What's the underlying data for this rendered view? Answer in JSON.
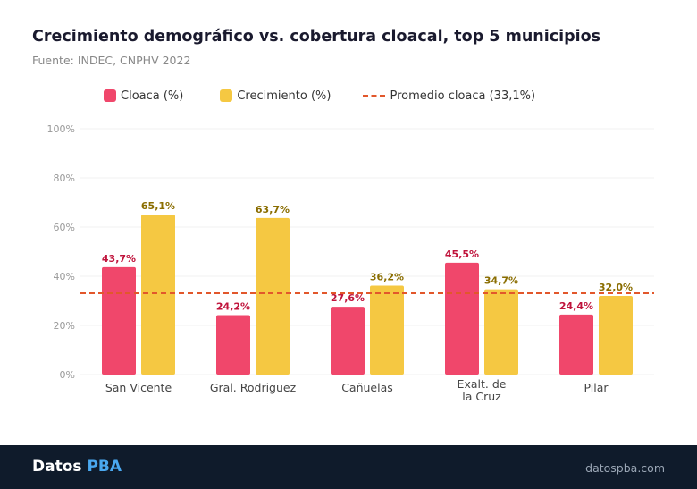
{
  "title": "Crecimiento demográfico vs. cobertura cloacal, top 5 municipios",
  "subtitle": "Fuente: INDEC, CNPHV 2022",
  "chart_data": {
    "type": "bar",
    "categories": [
      "San Vicente",
      "Gral. Rodriguez",
      "Cañuelas",
      "Exalt. de la Cruz",
      "Pilar"
    ],
    "category_lines": [
      [
        "San Vicente"
      ],
      [
        "Gral. Rodriguez"
      ],
      [
        "Cañuelas"
      ],
      [
        "Exalt. de",
        "la Cruz"
      ],
      [
        "Pilar"
      ]
    ],
    "series": [
      {
        "name": "Cloaca (%)",
        "color": "#f0476b",
        "label_color": "#c0143c",
        "values": [
          43.7,
          24.2,
          27.6,
          45.5,
          24.4
        ],
        "labels": [
          "43,7%",
          "24,2%",
          "27,6%",
          "45,5%",
          "24,4%"
        ]
      },
      {
        "name": "Crecimiento (%)",
        "color": "#f5c842",
        "label_color": "#8a6d00",
        "values": [
          65.1,
          63.7,
          36.2,
          34.7,
          32.0
        ],
        "labels": [
          "65,1%",
          "63,7%",
          "36,2%",
          "34,7%",
          "32,0%"
        ]
      }
    ],
    "reference_line": {
      "name": "Promedio cloaca (33,1%)",
      "value": 33.1,
      "color": "#e2572b"
    },
    "ylim": [
      0,
      100
    ],
    "yticks": [
      0,
      20,
      40,
      60,
      80,
      100
    ],
    "ytick_labels": [
      "0%",
      "20%",
      "40%",
      "60%",
      "80%",
      "100%"
    ],
    "grid": true,
    "legend": "top-left"
  },
  "footer": {
    "brand_main": "Datos",
    "brand_accent": "PBA",
    "site": "datospba.com"
  }
}
